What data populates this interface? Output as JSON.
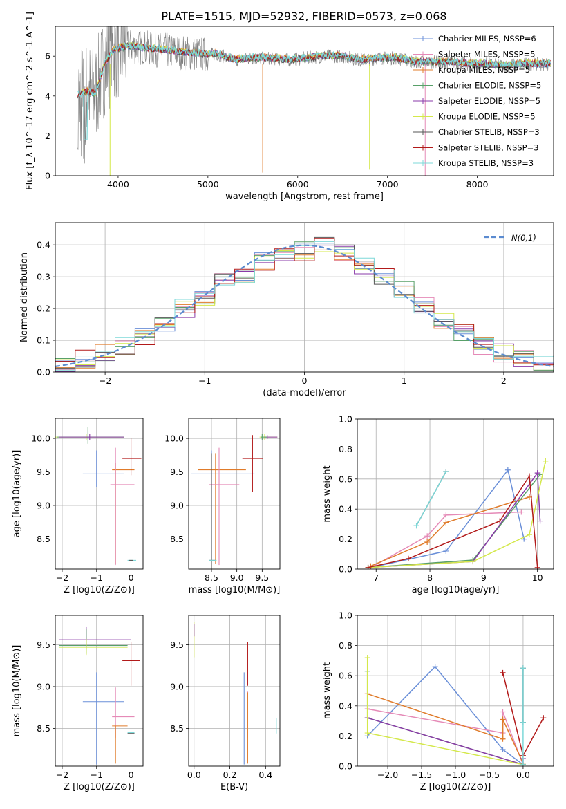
{
  "title": "PLATE=1515, MJD=52932, FIBERID=0573, z=0.068",
  "colors": {
    "chabrier_miles": "#6a8fd8",
    "salpeter_miles": "#e58ab7",
    "kroupa_miles": "#e07b2a",
    "chabrier_elodie": "#58a069",
    "salpeter_elodie": "#8a3aa8",
    "kroupa_elodie": "#d4e84a",
    "chabrier_stelib": "#555555",
    "salpeter_stelib": "#b21a1a",
    "kroupa_stelib": "#7dd8d8",
    "data": "#808080",
    "gaussian": "#5b8bd0"
  },
  "chart_data": [
    {
      "id": "spectrum",
      "type": "line",
      "xlabel": "wavelength [Angstrom, rest frame]",
      "ylabel": "Flux [f_λ 10^-17 erg cm^-2 s^-1 A^-1]",
      "xlim": [
        3300,
        8850
      ],
      "ylim": [
        0,
        7.5
      ],
      "xticks": [
        "4000",
        "5000",
        "6000",
        "7000",
        "8000"
      ],
      "yticks": [
        "0",
        "2",
        "4",
        "6"
      ],
      "grid": false,
      "legend_position": "right",
      "legend": [
        "Chabrier MILES, N_SSP=6",
        "Salpeter MILES, N_SSP=5",
        "Kroupa MILES, N_SSP=5",
        "Chabrier ELODIE, N_SSP=5",
        "Salpeter ELODIE, N_SSP=5",
        "Kroupa ELODIE, N_SSP=5",
        "Chabrier STELIB, N_SSP=3",
        "Salpeter STELIB, N_SSP=3",
        "Kroupa STELIB, N_SSP=3"
      ],
      "model_continuum": {
        "x": [
          3550,
          3650,
          3750,
          3850,
          3950,
          4100,
          4300,
          4500,
          4700,
          4900,
          5100,
          5300,
          5500,
          5700,
          5900,
          6100,
          6300,
          6500,
          6700,
          6900,
          7100,
          7300,
          7500,
          7700,
          7900,
          8100,
          8300,
          8500
        ],
        "y": [
          4.0,
          4.2,
          4.1,
          5.6,
          6.3,
          6.5,
          6.4,
          6.3,
          6.2,
          6.1,
          6.1,
          5.8,
          5.9,
          5.9,
          5.8,
          5.9,
          6.0,
          6.0,
          5.8,
          5.9,
          5.9,
          5.7,
          5.7,
          5.7,
          5.6,
          5.6,
          5.5,
          5.6
        ]
      }
    },
    {
      "id": "residuals",
      "type": "line",
      "xlabel": "(data-model)/error",
      "ylabel": "Normed distribution",
      "xlim": [
        -2.5,
        2.5
      ],
      "ylim": [
        0,
        0.47
      ],
      "xticks": [
        "−2",
        "−1",
        "0",
        "1",
        "2"
      ],
      "yticks": [
        "0.0",
        "0.1",
        "0.2",
        "0.3",
        "0.4"
      ],
      "grid": true,
      "legend_position": "top-right",
      "legend": [
        "N(0,1)"
      ],
      "histogram": {
        "bin_edges": [
          -2.5,
          -2.3,
          -2.1,
          -1.9,
          -1.7,
          -1.5,
          -1.3,
          -1.1,
          -0.9,
          -0.7,
          -0.5,
          -0.3,
          -0.1,
          0.1,
          0.3,
          0.5,
          0.7,
          0.9,
          1.1,
          1.3,
          1.5,
          1.7,
          1.9,
          2.1,
          2.3,
          2.5
        ],
        "values": [
          0.03,
          0.04,
          0.06,
          0.08,
          0.11,
          0.15,
          0.2,
          0.24,
          0.28,
          0.31,
          0.35,
          0.37,
          0.38,
          0.4,
          0.37,
          0.33,
          0.3,
          0.26,
          0.21,
          0.16,
          0.12,
          0.08,
          0.06,
          0.04,
          0.03
        ]
      }
    },
    {
      "id": "age_vs_Z",
      "type": "scatter",
      "xlabel": "Z [log10(Z/Z⊙)]",
      "ylabel": "age [log10(age/yr)]",
      "xlim": [
        -2.2,
        0.35
      ],
      "ylim": [
        8.05,
        10.3
      ],
      "xticks": [
        "−2",
        "−1",
        "0"
      ],
      "yticks": [
        "8.5",
        "9.0",
        "9.5",
        "10.0"
      ],
      "grid": true
    },
    {
      "id": "age_vs_mass",
      "type": "scatter",
      "xlabel": "mass [log10(M/M⊙)]",
      "xlim": [
        8.05,
        9.85
      ],
      "ylim": [
        8.05,
        10.3
      ],
      "xticks": [
        "8.5",
        "9.0",
        "9.5"
      ],
      "yticks": [
        "8.5",
        "9.0",
        "9.5",
        "10.0"
      ],
      "grid": true
    },
    {
      "id": "weight_vs_age",
      "type": "line",
      "xlabel": "age [log10(age/yr)]",
      "ylabel": "mass weight",
      "xlim": [
        6.65,
        10.3
      ],
      "ylim": [
        0,
        1.0
      ],
      "xticks": [
        "7",
        "8",
        "9",
        "10"
      ],
      "yticks": [
        "0.0",
        "0.2",
        "0.4",
        "0.6",
        "0.8",
        "1.0"
      ],
      "grid": true,
      "series": [
        {
          "color": "chabrier_miles",
          "x": [
            6.9,
            8.3,
            9.45,
            9.75
          ],
          "y": [
            0.01,
            0.12,
            0.66,
            0.2
          ]
        },
        {
          "color": "salpeter_miles",
          "x": [
            6.9,
            7.95,
            8.3,
            9.7
          ],
          "y": [
            0.01,
            0.22,
            0.36,
            0.38
          ]
        },
        {
          "color": "kroupa_miles",
          "x": [
            6.9,
            7.95,
            8.3,
            9.85
          ],
          "y": [
            0.02,
            0.18,
            0.31,
            0.48
          ]
        },
        {
          "color": "chabrier_elodie",
          "x": [
            6.85,
            8.8,
            10.05
          ],
          "y": [
            0.01,
            0.06,
            0.63
          ]
        },
        {
          "color": "salpeter_elodie",
          "x": [
            6.85,
            8.8,
            10.0,
            10.05
          ],
          "y": [
            0.01,
            0.05,
            0.64,
            0.32
          ]
        },
        {
          "color": "kroupa_elodie",
          "x": [
            6.85,
            8.8,
            9.85,
            10.15
          ],
          "y": [
            0.01,
            0.05,
            0.23,
            0.72
          ]
        },
        {
          "color": "chabrier_stelib",
          "x": [
            7.75,
            8.3
          ],
          "y": [
            0.29,
            0.65
          ]
        },
        {
          "color": "salpeter_stelib",
          "x": [
            6.85,
            7.6,
            9.3,
            9.85,
            10.0
          ],
          "y": [
            0.01,
            0.07,
            0.32,
            0.62,
            0.01
          ]
        },
        {
          "color": "kroupa_stelib",
          "x": [
            7.75,
            8.3
          ],
          "y": [
            0.29,
            0.65
          ]
        }
      ]
    },
    {
      "id": "mass_vs_Z",
      "type": "scatter",
      "xlabel": "Z [log10(Z/Z⊙)]",
      "ylabel": "mass [log10(M/M⊙)]",
      "xlim": [
        -2.2,
        0.35
      ],
      "ylim": [
        8.05,
        9.85
      ],
      "xticks": [
        "−2",
        "−1",
        "0"
      ],
      "yticks": [
        "8.5",
        "9.0",
        "9.5"
      ],
      "grid": true
    },
    {
      "id": "mass_vs_ebv",
      "type": "scatter",
      "xlabel": "E(B-V)",
      "xlim": [
        -0.03,
        0.48
      ],
      "ylim": [
        8.05,
        9.85
      ],
      "xticks": [
        "0.0",
        "0.2",
        "0.4"
      ],
      "yticks": [
        "8.5",
        "9.0",
        "9.5"
      ],
      "grid": true
    },
    {
      "id": "weight_vs_Z",
      "type": "line",
      "xlabel": "Z [log10(Z/Z⊙)]",
      "ylabel": "mass weight",
      "xlim": [
        -2.45,
        0.45
      ],
      "ylim": [
        0,
        1.0
      ],
      "xticks": [
        "−2.0",
        "−1.5",
        "−1.0",
        "−0.5",
        "0.0"
      ],
      "yticks": [
        "0.0",
        "0.2",
        "0.4",
        "0.6",
        "0.8",
        "1.0"
      ],
      "grid": true,
      "series": [
        {
          "color": "chabrier_miles",
          "x": [
            -2.3,
            -1.3,
            -0.3,
            0.0
          ],
          "y": [
            0.2,
            0.66,
            0.11,
            0.01
          ]
        },
        {
          "color": "salpeter_miles",
          "x": [
            -2.3,
            -0.3,
            -0.3,
            0.0
          ],
          "y": [
            0.38,
            0.22,
            0.36,
            0.01
          ]
        },
        {
          "color": "kroupa_miles",
          "x": [
            -2.3,
            -0.3,
            -0.3,
            0.0
          ],
          "y": [
            0.48,
            0.18,
            0.31,
            0.02
          ]
        },
        {
          "color": "chabrier_elodie",
          "x": [
            -2.3,
            -2.3,
            0.0
          ],
          "y": [
            0.63,
            0.32,
            0.01
          ]
        },
        {
          "color": "salpeter_elodie",
          "x": [
            -2.3,
            0.0,
            0.0
          ],
          "y": [
            0.32,
            0.01,
            0.05
          ]
        },
        {
          "color": "kroupa_elodie",
          "x": [
            -2.3,
            -2.3,
            0.0
          ],
          "y": [
            0.72,
            0.22,
            0.01
          ]
        },
        {
          "color": "chabrier_stelib",
          "x": [
            0.0,
            0.0
          ],
          "y": [
            0.29,
            0.65
          ]
        },
        {
          "color": "salpeter_stelib",
          "x": [
            -0.3,
            0.0,
            0.3
          ],
          "y": [
            0.62,
            0.07,
            0.32
          ]
        },
        {
          "color": "kroupa_stelib",
          "x": [
            0.0,
            0.0,
            0.0
          ],
          "y": [
            0.01,
            0.29,
            0.65
          ]
        }
      ]
    }
  ]
}
